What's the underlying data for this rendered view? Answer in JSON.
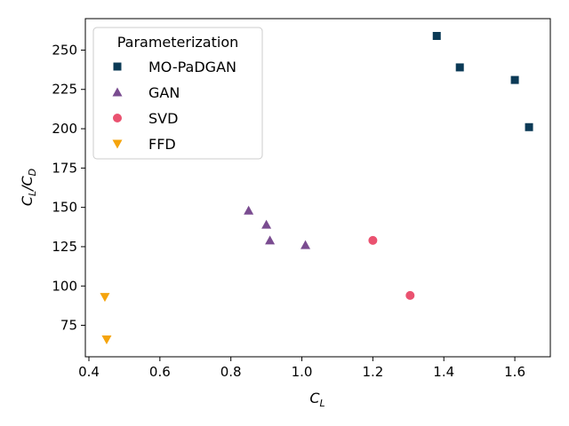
{
  "chart_data": {
    "type": "scatter",
    "xlabel": "C_L",
    "ylabel": "C_L/C_D",
    "xlim": [
      0.39,
      1.7
    ],
    "ylim": [
      55,
      270
    ],
    "xticks": [
      0.4,
      0.6,
      0.8,
      1.0,
      1.2,
      1.4,
      1.6
    ],
    "yticks": [
      75,
      100,
      125,
      150,
      175,
      200,
      225,
      250
    ],
    "xtick_labels": [
      "0.4",
      "0.6",
      "0.8",
      "1.0",
      "1.2",
      "1.4",
      "1.6"
    ],
    "ytick_labels": [
      "75",
      "100",
      "125",
      "150",
      "175",
      "200",
      "225",
      "250"
    ],
    "grid": false,
    "legend": {
      "title": "Parameterization",
      "placement": "top-left"
    },
    "series": [
      {
        "name": "MO-PaDGAN",
        "marker": "square",
        "color": "#0b3a56",
        "x": [
          1.38,
          1.445,
          1.6,
          1.64
        ],
        "y": [
          259,
          239,
          231,
          201
        ]
      },
      {
        "name": "GAN",
        "marker": "triangle-up",
        "color": "#7a4c90",
        "x": [
          0.85,
          0.9,
          0.91,
          1.01
        ],
        "y": [
          148,
          139,
          129,
          126
        ]
      },
      {
        "name": "SVD",
        "marker": "circle",
        "color": "#ea5270",
        "x": [
          1.2,
          1.305
        ],
        "y": [
          129,
          94
        ]
      },
      {
        "name": "FFD",
        "marker": "triangle-down",
        "color": "#f5a40c",
        "x": [
          0.445,
          0.45
        ],
        "y": [
          93,
          66
        ]
      }
    ]
  }
}
